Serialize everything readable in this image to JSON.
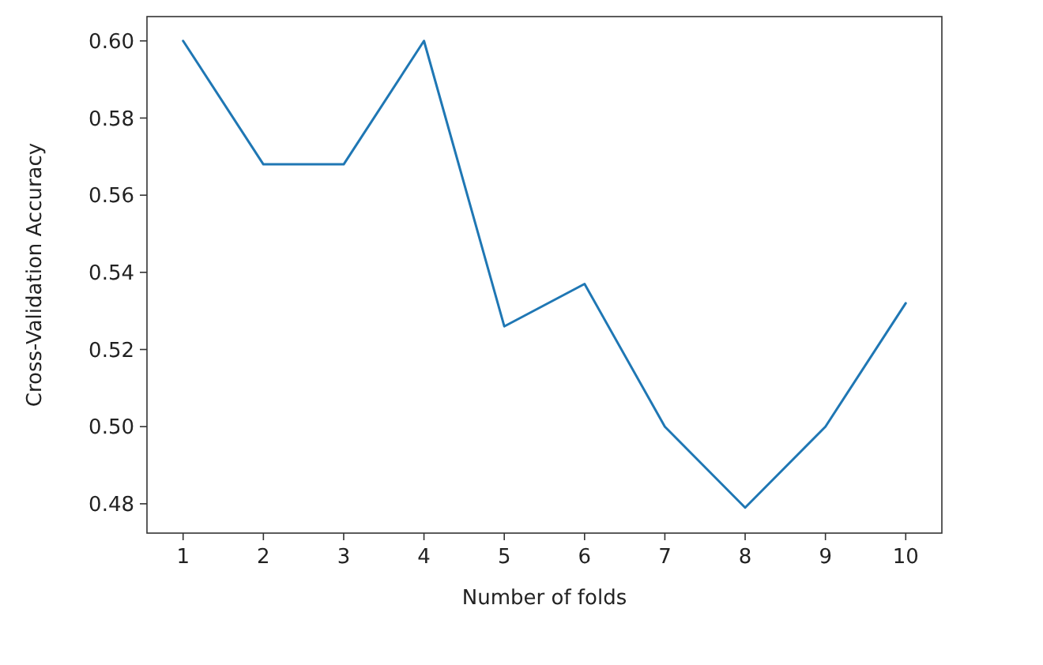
{
  "chart_data": {
    "type": "line",
    "xlabel": "Number of folds",
    "ylabel": "Cross-Validation Accuracy",
    "x": [
      1,
      2,
      3,
      4,
      5,
      6,
      7,
      8,
      9,
      10
    ],
    "series": [
      {
        "color": "#1f77b4",
        "values": [
          0.6,
          0.568,
          0.568,
          0.6,
          0.526,
          0.537,
          0.5,
          0.479,
          0.5,
          0.532
        ]
      }
    ],
    "xlim": [
      0.55,
      10.45
    ],
    "xticks": [
      1,
      2,
      3,
      4,
      5,
      6,
      7,
      8,
      9,
      10
    ],
    "ylim": [
      0.4724,
      0.6063
    ],
    "yticks": [
      {
        "value": 0.48,
        "label": "0.48"
      },
      {
        "value": 0.5,
        "label": "0.50"
      },
      {
        "value": 0.52,
        "label": "0.52"
      },
      {
        "value": 0.54,
        "label": "0.54"
      },
      {
        "value": 0.56,
        "label": "0.56"
      },
      {
        "value": 0.58,
        "label": "0.58"
      },
      {
        "value": 0.6,
        "label": "0.60"
      }
    ],
    "grid": false,
    "marker": "none",
    "line_style": "solid"
  }
}
